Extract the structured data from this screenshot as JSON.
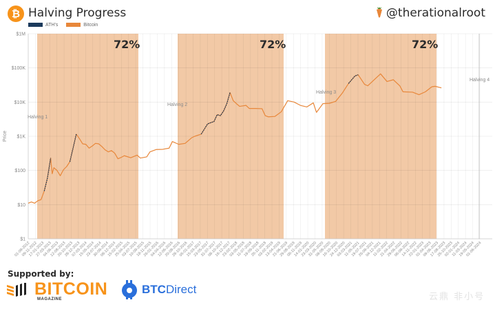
{
  "header": {
    "logo_glyph": "₿",
    "title": "Halving Progress",
    "handle": "@therationalroot"
  },
  "legend": [
    {
      "label": "ATH's",
      "color": "#1b3a5c"
    },
    {
      "label": "Bitcoin",
      "color": "#e8873a"
    }
  ],
  "colors": {
    "shade": "#f2c9a6",
    "price_line": "#e8873a",
    "ath_line": "#1b3a5c",
    "grid": "#e6e6e6",
    "axis_text": "#888888"
  },
  "footer": {
    "supported_by": "Supported by:",
    "sponsor1_name": "BITCOIN",
    "sponsor1_sub": "MAGAZINE",
    "sponsor2_bold": "BTC",
    "sponsor2_rest": "Direct",
    "watermark": "云鼎 非小号"
  },
  "chart_data": {
    "type": "line",
    "title": "Halving Progress",
    "xlabel": "",
    "ylabel": "Price",
    "yscale": "log",
    "ylim": [
      1,
      1000000
    ],
    "y_ticks": [
      "$1",
      "$10",
      "$100",
      "$1K",
      "$10K",
      "$100K",
      "$1M"
    ],
    "x_ticks": [
      "01-09-2012",
      "09-11-2012",
      "17-01-2013",
      "27-03-2013",
      "04-06-2013",
      "12-08-2013",
      "20-10-2013",
      "28-12-2013",
      "07-03-2014",
      "15-05-2014",
      "23-07-2014",
      "30-09-2014",
      "08-12-2014",
      "15-02-2015",
      "25-04-2015",
      "03-07-2015",
      "10-09-2015",
      "18-11-2015",
      "26-01-2016",
      "04-04-2016",
      "12-06-2016",
      "20-08-2016",
      "28-10-2016",
      "05-01-2017",
      "15-03-2017",
      "23-05-2017",
      "31-07-2017",
      "08-10-2017",
      "16-12-2017",
      "23-02-2018",
      "03-05-2018",
      "11-07-2018",
      "18-09-2018",
      "26-11-2018",
      "03-02-2019",
      "13-04-2019",
      "21-06-2019",
      "29-08-2019",
      "06-11-2019",
      "14-01-2020",
      "23-03-2020",
      "31-05-2020",
      "08-08-2020",
      "16-10-2020",
      "24-12-2020",
      "03-03-2021",
      "11-05-2021",
      "19-07-2021",
      "26-09-2021",
      "04-12-2021",
      "11-02-2022",
      "21-04-2022",
      "29-06-2022",
      "06-09-2022",
      "14-11-2022",
      "22-01-2023",
      "01-04-2023",
      "09-06-2023",
      "17-08-2023",
      "25-10-2023",
      "02-01-2024",
      "11-03-2024",
      "19-05-2024",
      "01-06-2024"
    ],
    "grid": true,
    "legend_position": "top-left",
    "series": [
      {
        "name": "Bitcoin",
        "color": "#e8873a"
      },
      {
        "name": "ATH's",
        "color": "#1b3a5c"
      }
    ],
    "halvings": [
      {
        "label": "Halving 1",
        "date": "28-11-2012"
      },
      {
        "label": "Halving 2",
        "date": "09-07-2016"
      },
      {
        "label": "Halving 3",
        "date": "11-05-2020"
      },
      {
        "label": "Halving 4",
        "date": "2024-04"
      }
    ],
    "shaded_regions": [
      {
        "start": "28-11-2012",
        "end": "2015-08",
        "label": "72%"
      },
      {
        "start": "09-07-2016",
        "end": "2019-03",
        "label": "72%"
      },
      {
        "start": "11-05-2020",
        "end": "2023-01",
        "label": "72%"
      }
    ],
    "price_points": [
      [
        "2012-09",
        11
      ],
      [
        "2012-10",
        12
      ],
      [
        "2012-11",
        11
      ],
      [
        "2012-12",
        13
      ],
      [
        "2013-01",
        14
      ],
      [
        "2013-02",
        25
      ],
      [
        "2013-03",
        60
      ],
      [
        "2013-04",
        230
      ],
      [
        "2013-04b",
        80
      ],
      [
        "2013-05",
        120
      ],
      [
        "2013-06",
        100
      ],
      [
        "2013-07",
        70
      ],
      [
        "2013-08",
        105
      ],
      [
        "2013-09",
        130
      ],
      [
        "2013-10",
        180
      ],
      [
        "2013-11",
        450
      ],
      [
        "2013-12",
        1150
      ],
      [
        "2014-01",
        850
      ],
      [
        "2014-02",
        600
      ],
      [
        "2014-03",
        580
      ],
      [
        "2014-04",
        450
      ],
      [
        "2014-05",
        520
      ],
      [
        "2014-06",
        620
      ],
      [
        "2014-07",
        600
      ],
      [
        "2014-08",
        500
      ],
      [
        "2014-09",
        400
      ],
      [
        "2014-10",
        350
      ],
      [
        "2014-11",
        380
      ],
      [
        "2014-12",
        320
      ],
      [
        "2015-01",
        220
      ],
      [
        "2015-02",
        240
      ],
      [
        "2015-03",
        270
      ],
      [
        "2015-05",
        235
      ],
      [
        "2015-07",
        280
      ],
      [
        "2015-08",
        230
      ],
      [
        "2015-10",
        250
      ],
      [
        "2015-11",
        350
      ],
      [
        "2016-01",
        410
      ],
      [
        "2016-03",
        415
      ],
      [
        "2016-05",
        450
      ],
      [
        "2016-06",
        700
      ],
      [
        "2016-08",
        580
      ],
      [
        "2016-10",
        620
      ],
      [
        "2016-12",
        900
      ],
      [
        "2017-01",
        1000
      ],
      [
        "2017-03",
        1150
      ],
      [
        "2017-05",
        2300
      ],
      [
        "2017-06",
        2500
      ],
      [
        "2017-07",
        2700
      ],
      [
        "2017-08",
        4300
      ],
      [
        "2017-09",
        4000
      ],
      [
        "2017-10",
        5500
      ],
      [
        "2017-11",
        9000
      ],
      [
        "2017-12",
        19000
      ],
      [
        "2018-01",
        11000
      ],
      [
        "2018-02",
        9000
      ],
      [
        "2018-03",
        7500
      ],
      [
        "2018-05",
        8000
      ],
      [
        "2018-06",
        6500
      ],
      [
        "2018-08",
        6500
      ],
      [
        "2018-10",
        6400
      ],
      [
        "2018-11",
        4000
      ],
      [
        "2018-12",
        3700
      ],
      [
        "2019-02",
        3800
      ],
      [
        "2019-04",
        5200
      ],
      [
        "2019-06",
        11000
      ],
      [
        "2019-08",
        10000
      ],
      [
        "2019-10",
        8000
      ],
      [
        "2019-12",
        7200
      ],
      [
        "2020-02",
        9500
      ],
      [
        "2020-03",
        5000
      ],
      [
        "2020-05",
        9000
      ],
      [
        "2020-07",
        9200
      ],
      [
        "2020-09",
        10500
      ],
      [
        "2020-11",
        18000
      ],
      [
        "2021-01",
        35000
      ],
      [
        "2021-03",
        58000
      ],
      [
        "2021-04",
        63000
      ],
      [
        "2021-06",
        33000
      ],
      [
        "2021-07",
        30000
      ],
      [
        "2021-09",
        45000
      ],
      [
        "2021-11",
        67000
      ],
      [
        "2022-01",
        40000
      ],
      [
        "2022-03",
        45000
      ],
      [
        "2022-05",
        30000
      ],
      [
        "2022-06",
        20000
      ],
      [
        "2022-09",
        19500
      ],
      [
        "2022-11",
        16500
      ],
      [
        "2023-01",
        20000
      ],
      [
        "2023-03",
        28000
      ],
      [
        "2023-04",
        29000
      ],
      [
        "2023-06",
        26000
      ]
    ]
  }
}
